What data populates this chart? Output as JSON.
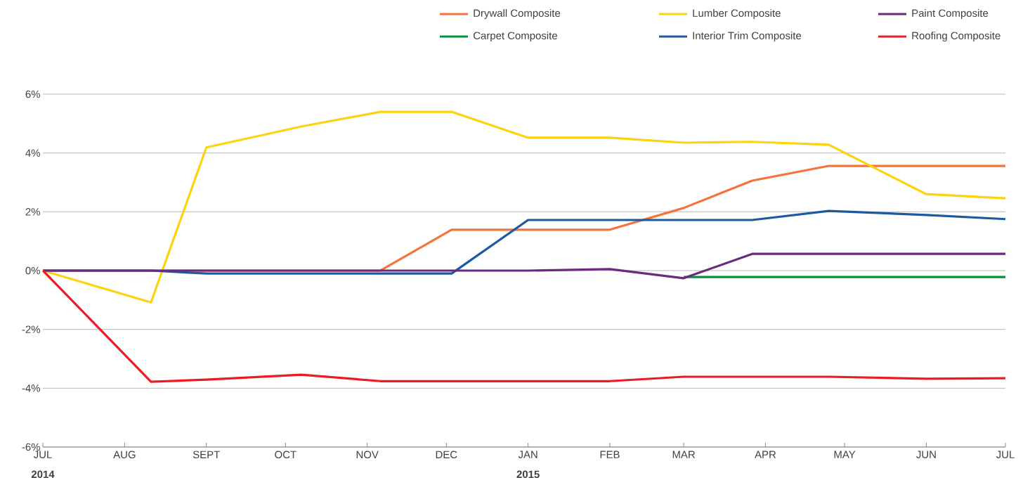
{
  "chart_data": {
    "type": "line",
    "x": [
      "2014-07-01",
      "2014-08-11",
      "2014-09-01",
      "2014-10-07",
      "2014-11-06",
      "2014-12-03",
      "2015-01-01",
      "2015-02-01",
      "2015-03-01",
      "2015-03-27",
      "2015-04-25",
      "2015-06-01",
      "2015-07-01"
    ],
    "series": [
      {
        "name": "Drywall Composite",
        "color": "#f4743b",
        "values": [
          0,
          0,
          0,
          0,
          0,
          1.39,
          1.39,
          1.39,
          2.13,
          3.06,
          3.56,
          3.56,
          3.56
        ]
      },
      {
        "name": "Carpet Composite",
        "color": "#00953b",
        "values": [
          null,
          null,
          null,
          null,
          null,
          null,
          null,
          null,
          -0.22,
          -0.22,
          -0.22,
          -0.22,
          -0.22
        ]
      },
      {
        "name": "Lumber Composite",
        "color": "#fdd20e",
        "values": [
          0,
          -1.08,
          4.19,
          4.9,
          5.4,
          5.4,
          4.52,
          4.52,
          4.35,
          4.38,
          4.28,
          2.6,
          2.46
        ]
      },
      {
        "name": "Interior Trim Composite",
        "color": "#1c5aa0",
        "values": [
          0,
          0,
          -0.1,
          -0.1,
          -0.1,
          -0.1,
          1.72,
          1.72,
          1.72,
          1.72,
          2.03,
          1.89,
          1.75
        ]
      },
      {
        "name": "Paint Composite",
        "color": "#6b2a7e",
        "values": [
          0,
          0,
          0,
          0,
          0,
          0,
          0,
          0.05,
          -0.26,
          0.57,
          0.57,
          0.57,
          0.57
        ]
      },
      {
        "name": "Roofing Composite",
        "color": "#ed1c24",
        "values": [
          0,
          -3.78,
          -3.71,
          -3.54,
          -3.76,
          -3.76,
          -3.76,
          -3.76,
          -3.61,
          -3.61,
          -3.61,
          -3.68,
          -3.66
        ]
      }
    ],
    "xlim": [
      "2014-07-01",
      "2015-07-01"
    ],
    "xticks": [
      {
        "value": "2014-07-01",
        "label": "JUL"
      },
      {
        "value": "2014-08-01",
        "label": "AUG"
      },
      {
        "value": "2014-09-01",
        "label": "SEPT"
      },
      {
        "value": "2014-10-01",
        "label": "OCT"
      },
      {
        "value": "2014-11-01",
        "label": "NOV"
      },
      {
        "value": "2014-12-01",
        "label": "DEC"
      },
      {
        "value": "2015-01-01",
        "label": "JAN"
      },
      {
        "value": "2015-02-01",
        "label": "FEB"
      },
      {
        "value": "2015-03-01",
        "label": "MAR"
      },
      {
        "value": "2015-04-01",
        "label": "APR"
      },
      {
        "value": "2015-05-01",
        "label": "MAY"
      },
      {
        "value": "2015-06-01",
        "label": "JUN"
      },
      {
        "value": "2015-07-01",
        "label": "JUL"
      }
    ],
    "ylim": [
      -6,
      6
    ],
    "yticks": [
      {
        "value": -6,
        "label": "-6%"
      },
      {
        "value": -4,
        "label": "-4%"
      },
      {
        "value": -2,
        "label": "-2%"
      },
      {
        "value": 0,
        "label": "0%"
      },
      {
        "value": 2,
        "label": "2%"
      },
      {
        "value": 4,
        "label": "4%"
      },
      {
        "value": 6,
        "label": "6%"
      }
    ],
    "annotations": [
      "2014",
      "2015"
    ],
    "grid": "y",
    "legend": "top right",
    "marker": "none",
    "line_style": "solid"
  }
}
